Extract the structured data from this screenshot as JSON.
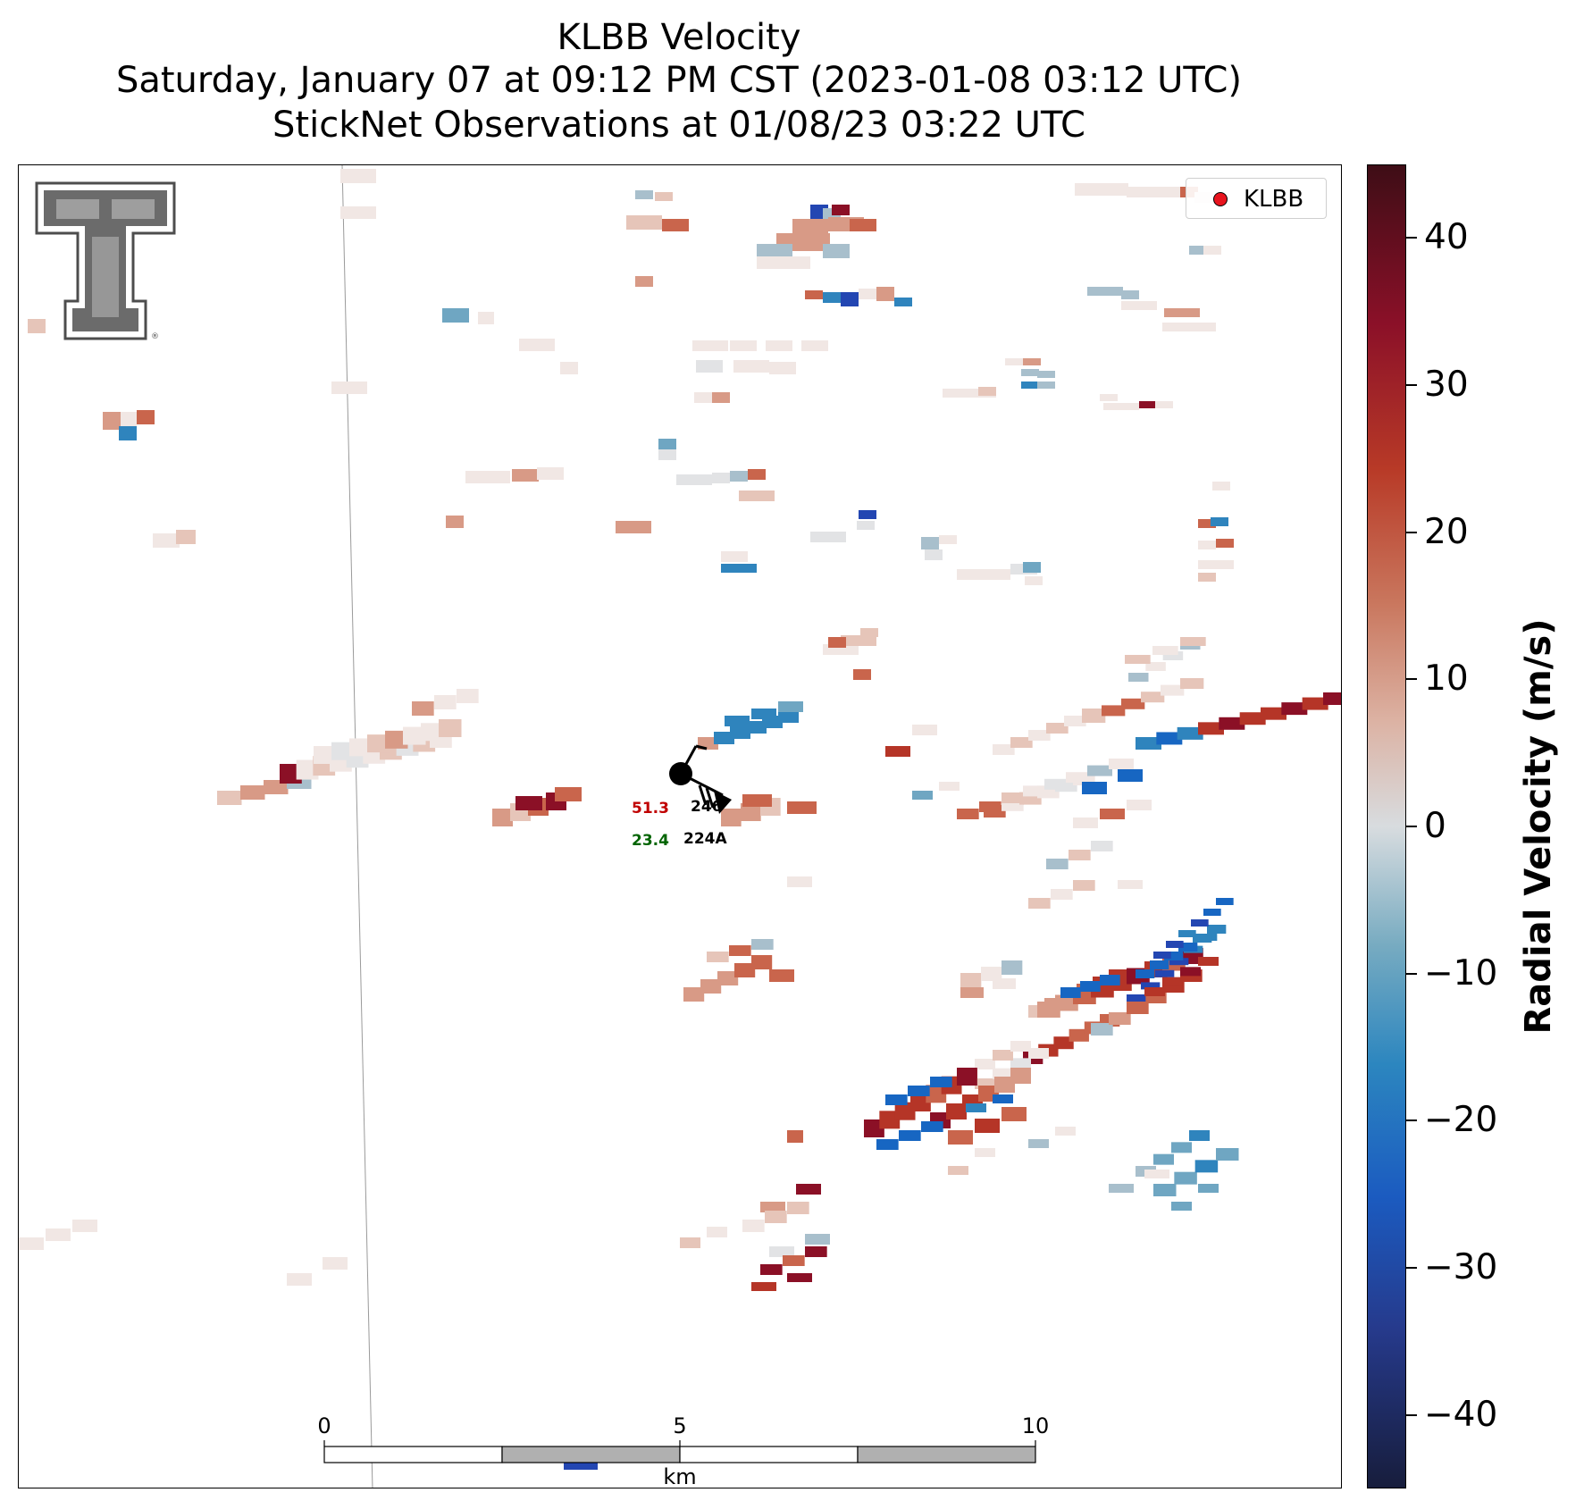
{
  "titles": {
    "line1": "KLBB Velocity",
    "line2": "Saturday, January 07 at 09:12 PM CST (2023-01-08 03:12 UTC)",
    "line3": "StickNet Observations at 01/08/23 03:22 UTC"
  },
  "legend": {
    "label": "KLBB",
    "marker_color": "#e8141e"
  },
  "colorbar": {
    "label": "Radial Velocity (m/s)",
    "range": [
      -45,
      45
    ],
    "ticks": [
      40,
      30,
      20,
      10,
      0,
      -10,
      -20,
      -30,
      -40
    ],
    "tick_labels": [
      "40",
      "30",
      "20",
      "10",
      "0",
      "−10",
      "−20",
      "−30",
      "−40"
    ]
  },
  "station": {
    "id_upper": "246",
    "id_lower": "224A",
    "temperature": "51.3",
    "dewpoint": "23.4",
    "temperature_color": "#c00000",
    "dewpoint_color": "#006400"
  },
  "scale_bar": {
    "labels": [
      "0",
      "5",
      "10"
    ],
    "unit": "km"
  },
  "logo": {
    "name": "texas-tech-double-t-logo"
  }
}
